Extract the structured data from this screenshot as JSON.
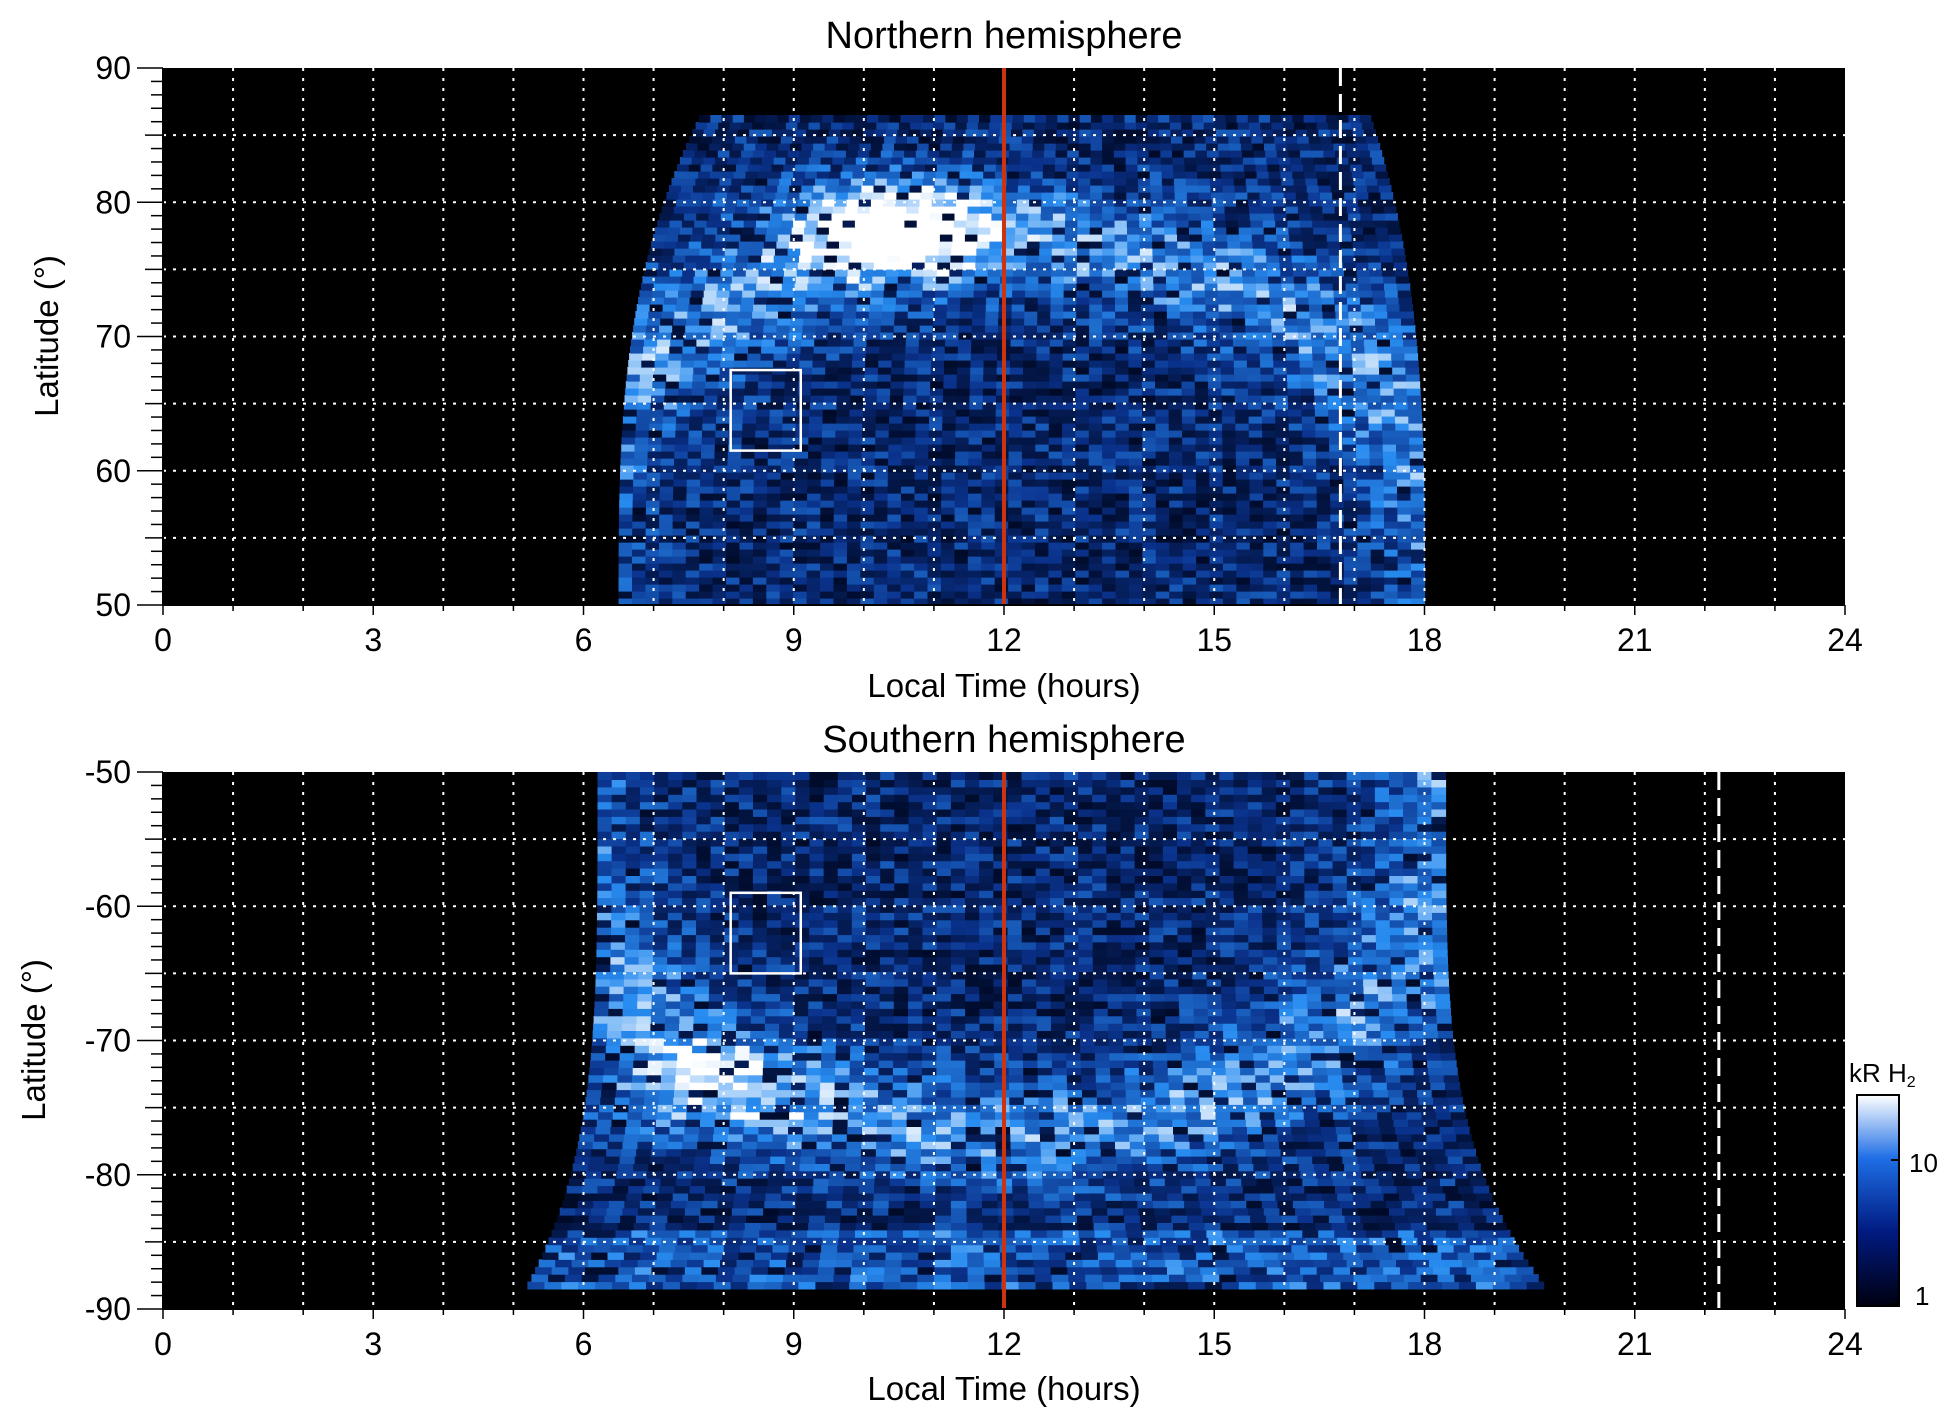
{
  "chart_data": [
    {
      "type": "heatmap",
      "title": "Northern hemisphere",
      "xlabel": "Local Time (hours)",
      "ylabel": "Latitude (°)",
      "xlim": [
        0,
        24
      ],
      "ylim": [
        50,
        90
      ],
      "xticks": [
        "0",
        "3",
        "6",
        "9",
        "12",
        "15",
        "18",
        "21",
        "24"
      ],
      "yticks": [
        "90",
        "80",
        "70",
        "60",
        "50"
      ],
      "grid": true,
      "coverage": {
        "lt_start": 6.5,
        "lt_end": 18.0,
        "lat_min": 50,
        "lat_max": 86.5
      },
      "bright_oval": {
        "lt_center": 10.5,
        "lat_center": 78,
        "description_value": "peak intensity near 08-12 LT, 75-83°"
      },
      "noon_line_lt": 12,
      "dashed_line_lt": 16.8,
      "box": {
        "lt": [
          8.1,
          9.1
        ],
        "lat": [
          61.5,
          67.5
        ]
      }
    },
    {
      "type": "heatmap",
      "title": "Southern hemisphere",
      "xlabel": "Local Time (hours)",
      "ylabel": "Latitude (°)",
      "xlim": [
        0,
        24
      ],
      "ylim": [
        -90,
        -50
      ],
      "xticks": [
        "0",
        "3",
        "6",
        "9",
        "12",
        "15",
        "18",
        "21",
        "24"
      ],
      "yticks": [
        "-50",
        "-60",
        "-70",
        "-80",
        "-90"
      ],
      "grid": true,
      "coverage": {
        "lt_start": 5.2,
        "lt_end": 19.7,
        "lat_min": -88.5,
        "lat_max": -50
      },
      "noon_line_lt": 12,
      "dashed_line_lt": 22.2,
      "box": {
        "lt": [
          8.1,
          9.1
        ],
        "lat": [
          -65,
          -59
        ]
      }
    }
  ],
  "colorbar": {
    "label_main": "kR H",
    "label_sub": "2",
    "scale": "log",
    "ticks": [
      "10",
      "1"
    ],
    "colors": [
      "#000010",
      "#001a80",
      "#1e6ee6",
      "#ffffff"
    ]
  },
  "colors": {
    "background": "#000000",
    "grid": "#ffffff",
    "noon_line": "#cc3311",
    "data_bright": "#ffffff",
    "data_mid": "#3f8ef0",
    "data_dark": "#0a2a8a"
  }
}
